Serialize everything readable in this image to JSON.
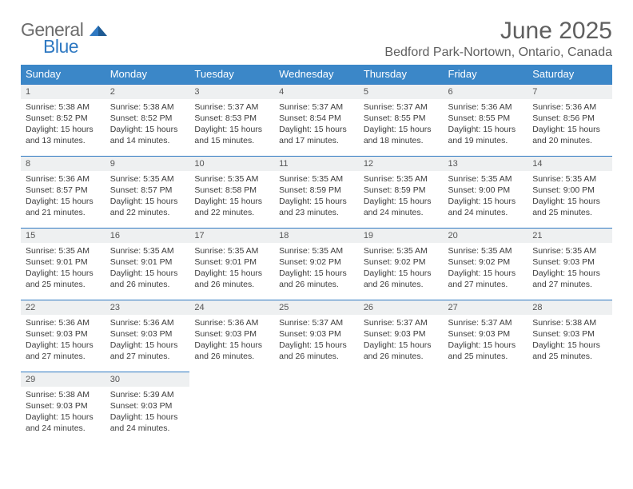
{
  "logo": {
    "word1": "General",
    "word2": "Blue",
    "color_gray": "#6d6d6d",
    "color_blue": "#2f79c2"
  },
  "title": "June 2025",
  "location": "Bedford Park-Nortown, Ontario, Canada",
  "colors": {
    "header_bg": "#3b87c8",
    "header_text": "#ffffff",
    "daynum_bg": "#eef0f1",
    "rule": "#2f79c2",
    "text": "#3c3c3c",
    "title_text": "#5f5f5f"
  },
  "day_headers": [
    "Sunday",
    "Monday",
    "Tuesday",
    "Wednesday",
    "Thursday",
    "Friday",
    "Saturday"
  ],
  "weeks": [
    [
      {
        "n": "1",
        "sr": "Sunrise: 5:38 AM",
        "ss": "Sunset: 8:52 PM",
        "d1": "Daylight: 15 hours",
        "d2": "and 13 minutes."
      },
      {
        "n": "2",
        "sr": "Sunrise: 5:38 AM",
        "ss": "Sunset: 8:52 PM",
        "d1": "Daylight: 15 hours",
        "d2": "and 14 minutes."
      },
      {
        "n": "3",
        "sr": "Sunrise: 5:37 AM",
        "ss": "Sunset: 8:53 PM",
        "d1": "Daylight: 15 hours",
        "d2": "and 15 minutes."
      },
      {
        "n": "4",
        "sr": "Sunrise: 5:37 AM",
        "ss": "Sunset: 8:54 PM",
        "d1": "Daylight: 15 hours",
        "d2": "and 17 minutes."
      },
      {
        "n": "5",
        "sr": "Sunrise: 5:37 AM",
        "ss": "Sunset: 8:55 PM",
        "d1": "Daylight: 15 hours",
        "d2": "and 18 minutes."
      },
      {
        "n": "6",
        "sr": "Sunrise: 5:36 AM",
        "ss": "Sunset: 8:55 PM",
        "d1": "Daylight: 15 hours",
        "d2": "and 19 minutes."
      },
      {
        "n": "7",
        "sr": "Sunrise: 5:36 AM",
        "ss": "Sunset: 8:56 PM",
        "d1": "Daylight: 15 hours",
        "d2": "and 20 minutes."
      }
    ],
    [
      {
        "n": "8",
        "sr": "Sunrise: 5:36 AM",
        "ss": "Sunset: 8:57 PM",
        "d1": "Daylight: 15 hours",
        "d2": "and 21 minutes."
      },
      {
        "n": "9",
        "sr": "Sunrise: 5:35 AM",
        "ss": "Sunset: 8:57 PM",
        "d1": "Daylight: 15 hours",
        "d2": "and 22 minutes."
      },
      {
        "n": "10",
        "sr": "Sunrise: 5:35 AM",
        "ss": "Sunset: 8:58 PM",
        "d1": "Daylight: 15 hours",
        "d2": "and 22 minutes."
      },
      {
        "n": "11",
        "sr": "Sunrise: 5:35 AM",
        "ss": "Sunset: 8:59 PM",
        "d1": "Daylight: 15 hours",
        "d2": "and 23 minutes."
      },
      {
        "n": "12",
        "sr": "Sunrise: 5:35 AM",
        "ss": "Sunset: 8:59 PM",
        "d1": "Daylight: 15 hours",
        "d2": "and 24 minutes."
      },
      {
        "n": "13",
        "sr": "Sunrise: 5:35 AM",
        "ss": "Sunset: 9:00 PM",
        "d1": "Daylight: 15 hours",
        "d2": "and 24 minutes."
      },
      {
        "n": "14",
        "sr": "Sunrise: 5:35 AM",
        "ss": "Sunset: 9:00 PM",
        "d1": "Daylight: 15 hours",
        "d2": "and 25 minutes."
      }
    ],
    [
      {
        "n": "15",
        "sr": "Sunrise: 5:35 AM",
        "ss": "Sunset: 9:01 PM",
        "d1": "Daylight: 15 hours",
        "d2": "and 25 minutes."
      },
      {
        "n": "16",
        "sr": "Sunrise: 5:35 AM",
        "ss": "Sunset: 9:01 PM",
        "d1": "Daylight: 15 hours",
        "d2": "and 26 minutes."
      },
      {
        "n": "17",
        "sr": "Sunrise: 5:35 AM",
        "ss": "Sunset: 9:01 PM",
        "d1": "Daylight: 15 hours",
        "d2": "and 26 minutes."
      },
      {
        "n": "18",
        "sr": "Sunrise: 5:35 AM",
        "ss": "Sunset: 9:02 PM",
        "d1": "Daylight: 15 hours",
        "d2": "and 26 minutes."
      },
      {
        "n": "19",
        "sr": "Sunrise: 5:35 AM",
        "ss": "Sunset: 9:02 PM",
        "d1": "Daylight: 15 hours",
        "d2": "and 26 minutes."
      },
      {
        "n": "20",
        "sr": "Sunrise: 5:35 AM",
        "ss": "Sunset: 9:02 PM",
        "d1": "Daylight: 15 hours",
        "d2": "and 27 minutes."
      },
      {
        "n": "21",
        "sr": "Sunrise: 5:35 AM",
        "ss": "Sunset: 9:03 PM",
        "d1": "Daylight: 15 hours",
        "d2": "and 27 minutes."
      }
    ],
    [
      {
        "n": "22",
        "sr": "Sunrise: 5:36 AM",
        "ss": "Sunset: 9:03 PM",
        "d1": "Daylight: 15 hours",
        "d2": "and 27 minutes."
      },
      {
        "n": "23",
        "sr": "Sunrise: 5:36 AM",
        "ss": "Sunset: 9:03 PM",
        "d1": "Daylight: 15 hours",
        "d2": "and 27 minutes."
      },
      {
        "n": "24",
        "sr": "Sunrise: 5:36 AM",
        "ss": "Sunset: 9:03 PM",
        "d1": "Daylight: 15 hours",
        "d2": "and 26 minutes."
      },
      {
        "n": "25",
        "sr": "Sunrise: 5:37 AM",
        "ss": "Sunset: 9:03 PM",
        "d1": "Daylight: 15 hours",
        "d2": "and 26 minutes."
      },
      {
        "n": "26",
        "sr": "Sunrise: 5:37 AM",
        "ss": "Sunset: 9:03 PM",
        "d1": "Daylight: 15 hours",
        "d2": "and 26 minutes."
      },
      {
        "n": "27",
        "sr": "Sunrise: 5:37 AM",
        "ss": "Sunset: 9:03 PM",
        "d1": "Daylight: 15 hours",
        "d2": "and 25 minutes."
      },
      {
        "n": "28",
        "sr": "Sunrise: 5:38 AM",
        "ss": "Sunset: 9:03 PM",
        "d1": "Daylight: 15 hours",
        "d2": "and 25 minutes."
      }
    ],
    [
      {
        "n": "29",
        "sr": "Sunrise: 5:38 AM",
        "ss": "Sunset: 9:03 PM",
        "d1": "Daylight: 15 hours",
        "d2": "and 24 minutes."
      },
      {
        "n": "30",
        "sr": "Sunrise: 5:39 AM",
        "ss": "Sunset: 9:03 PM",
        "d1": "Daylight: 15 hours",
        "d2": "and 24 minutes."
      },
      null,
      null,
      null,
      null,
      null
    ]
  ]
}
